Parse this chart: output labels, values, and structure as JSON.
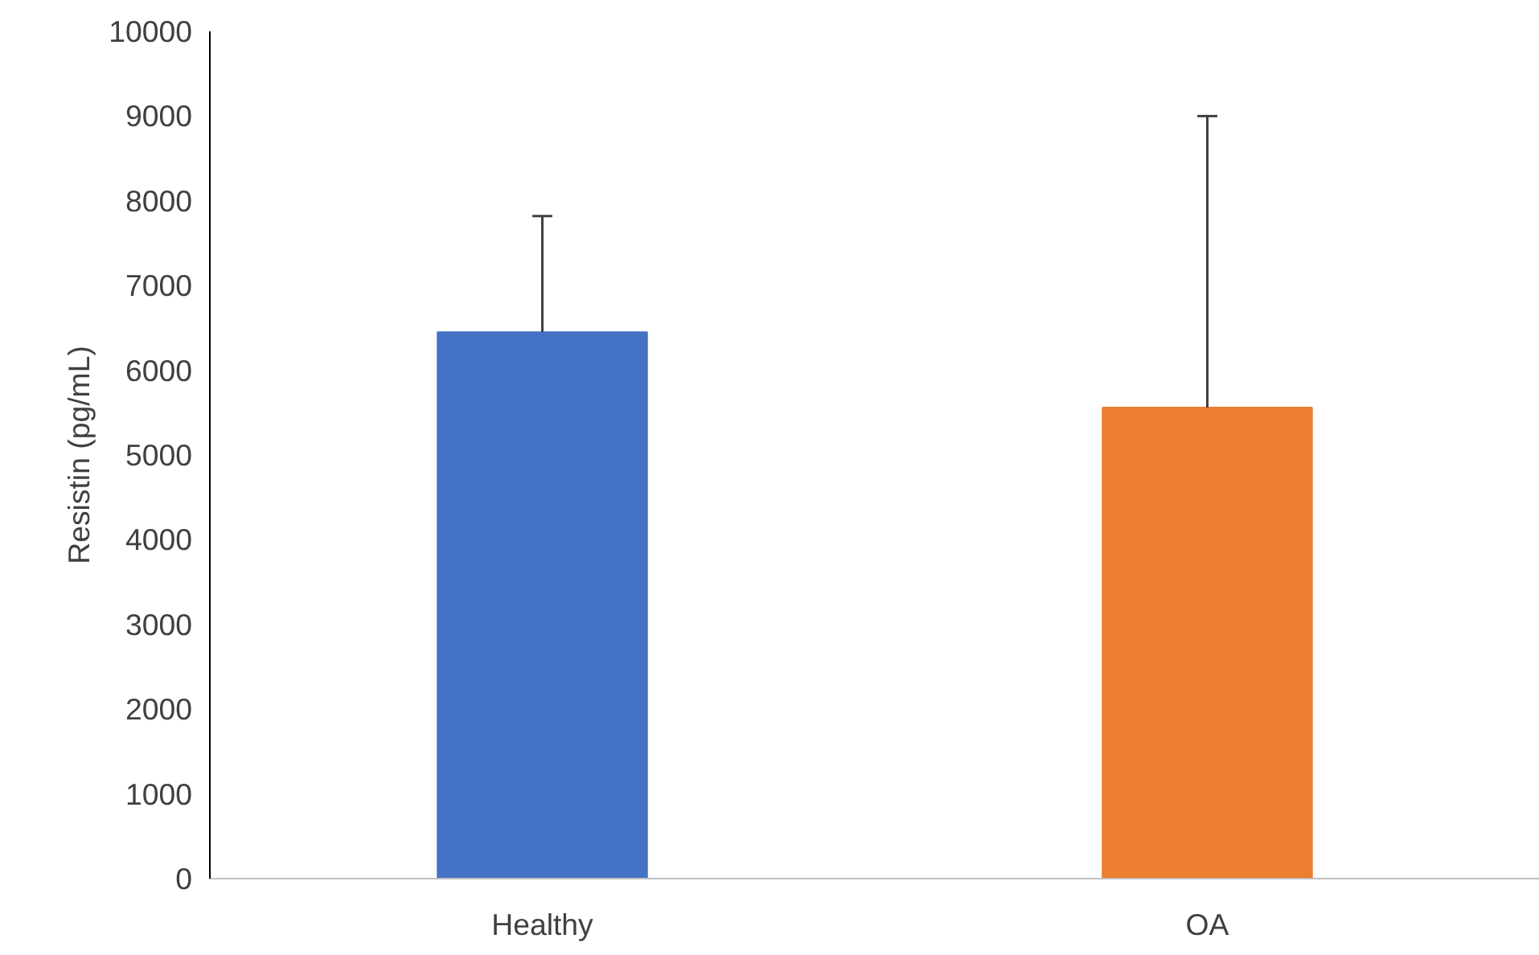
{
  "chart_data": {
    "type": "bar",
    "ylabel": "Resistin (pg/mL)",
    "categories": [
      "Healthy",
      "OA"
    ],
    "values": [
      6450,
      5560
    ],
    "colors": [
      "#4472c4",
      "#ed7d31"
    ],
    "errors": [
      [
        6450,
        7820
      ],
      [
        5560,
        9000
      ]
    ],
    "ylim": [
      0,
      10000
    ],
    "yticks": [
      0,
      1000,
      2000,
      3000,
      4000,
      5000,
      6000,
      7000,
      8000,
      9000,
      10000
    ],
    "grid": false
  }
}
